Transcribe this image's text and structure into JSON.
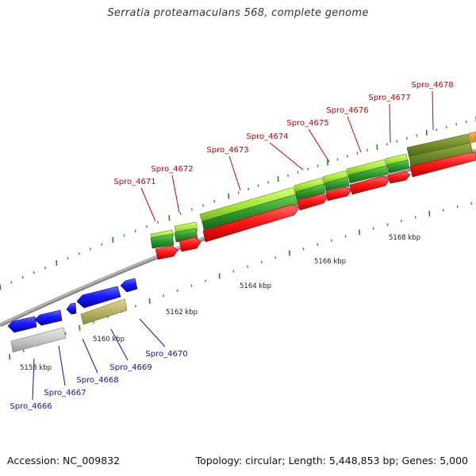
{
  "title": "Serratia proteamaculans 568, complete genome",
  "footer": {
    "accession": "Accession: NC_009832",
    "summary": "Topology: circular; Length: 5,448,853 bp; Genes: 5,000"
  },
  "colors": {
    "forward_cds": "#ff0000",
    "reverse_cds": "#0000ff",
    "forward_label": "#cc0000",
    "reverse_label": "#1010b0",
    "backbone": "#888888",
    "tick": "#1f8a1f"
  },
  "ruler_labels": [
    "5158 kbp",
    "5160 kbp",
    "5162 kbp",
    "5164 kbp",
    "5166 kbp",
    "5168 kbp"
  ],
  "forward_genes": [
    "Spro_4671",
    "Spro_4672",
    "Spro_4673",
    "Spro_4674",
    "Spro_4675",
    "Spro_4676",
    "Spro_4677",
    "Spro_4678"
  ],
  "reverse_genes": [
    "Spro_4666",
    "Spro_4667",
    "Spro_4668",
    "Spro_4669",
    "Spro_4670"
  ]
}
